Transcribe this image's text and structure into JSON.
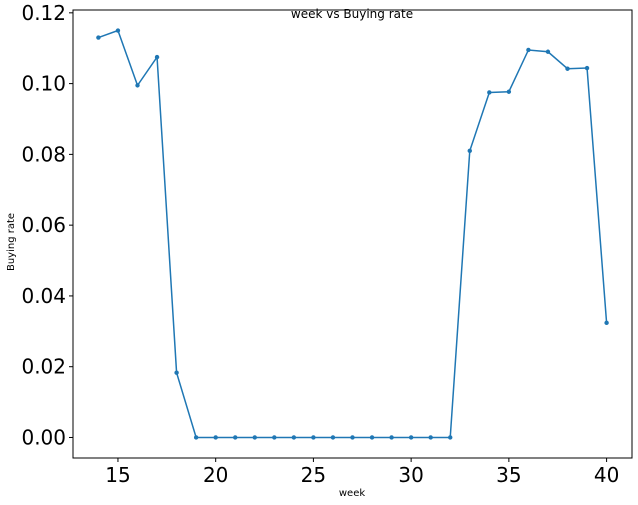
{
  "chart_data": {
    "type": "line",
    "title": "week vs Buying rate",
    "xlabel": "week",
    "ylabel": "Buying rate",
    "xlim": [
      12.7,
      41.3
    ],
    "ylim": [
      -0.0058,
      0.1208
    ],
    "xticks": [
      "15",
      "20",
      "25",
      "30",
      "35",
      "40"
    ],
    "yticks": [
      "0.00",
      "0.02",
      "0.04",
      "0.06",
      "0.08",
      "0.10",
      "0.12"
    ],
    "grid": false,
    "legend": "none",
    "series": [
      {
        "color": "#1f77b4",
        "marker": "circle",
        "x": [
          14,
          15,
          16,
          17,
          18,
          19,
          20,
          21,
          22,
          23,
          24,
          25,
          26,
          27,
          28,
          29,
          30,
          31,
          32,
          33,
          34,
          35,
          36,
          37,
          38,
          39,
          40
        ],
        "y": [
          0.113,
          0.115,
          0.0995,
          0.1075,
          0.0183,
          0.0,
          0.0,
          0.0,
          0.0,
          0.0,
          0.0,
          0.0,
          0.0,
          0.0,
          0.0,
          0.0,
          0.0,
          0.0,
          0.0,
          0.081,
          0.0975,
          0.0977,
          0.1095,
          0.109,
          0.1042,
          0.1044,
          0.0324
        ]
      }
    ]
  }
}
